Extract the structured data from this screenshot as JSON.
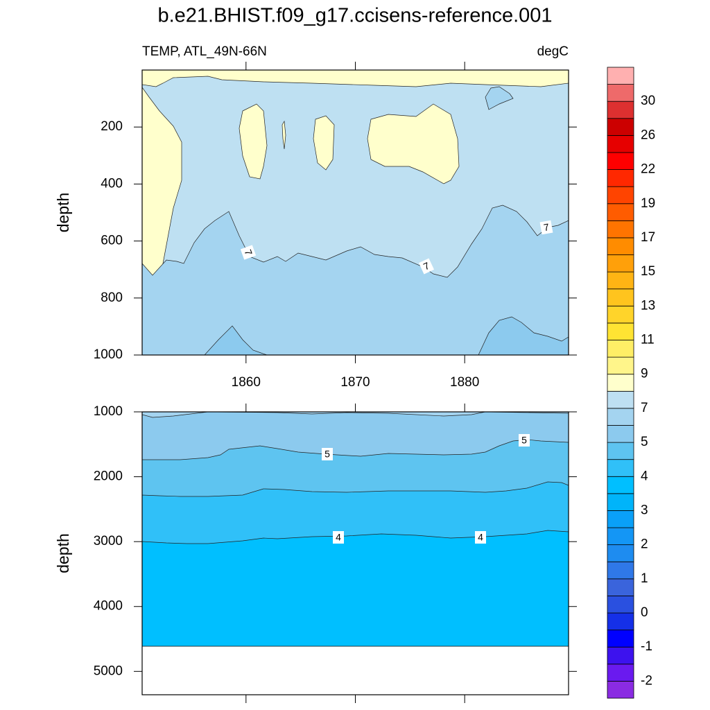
{
  "title": "b.e21.BHIST.f09_g17.ccisens-reference.001",
  "chart_data": [
    {
      "type": "contour",
      "left_string": "TEMP, ATL_49N-66N",
      "right_string": "degC",
      "y_label": "depth",
      "xlim": [
        1850.5,
        1889.5
      ],
      "xticks": [
        1860,
        1870,
        1880
      ],
      "x_tick_labels": true,
      "ylim": [
        0,
        1000
      ],
      "yticks": [
        200,
        400,
        600,
        800,
        1000
      ],
      "contour_labels": [
        7,
        7,
        7
      ]
    },
    {
      "type": "contour",
      "y_label": "depth",
      "xlim": [
        1850.5,
        1889.5
      ],
      "xticks": [
        1860,
        1870,
        1880
      ],
      "x_tick_labels": false,
      "ylim": [
        1000,
        5360
      ],
      "yticks": [
        1000,
        2000,
        3000,
        4000,
        5000
      ],
      "contour_labels": [
        5,
        5,
        4,
        4
      ]
    }
  ],
  "colorbar": {
    "labels": [
      -2,
      -1,
      0,
      1,
      2,
      3,
      4,
      5,
      7,
      9,
      11,
      13,
      15,
      17,
      19,
      22,
      26,
      30
    ],
    "colors": [
      "#8a2be2",
      "#6a1aef",
      "#3d12ee",
      "#0000ff",
      "#1530e8",
      "#2a50e0",
      "#3a64dc",
      "#2f78e8",
      "#1e8cf0",
      "#1496f5",
      "#0aa0f8",
      "#00b4fa",
      "#00bfff",
      "#30c0f8",
      "#5ec4f0",
      "#8ccaee",
      "#a4d4f0",
      "#bee0f2",
      "#ffffcc",
      "#fff58a",
      "#ffee66",
      "#ffe433",
      "#ffd42a",
      "#ffc41e",
      "#ffb414",
      "#ffa00a",
      "#ff8c00",
      "#ff7400",
      "#ff5c00",
      "#ff4400",
      "#ff2800",
      "#ff0000",
      "#e60000",
      "#cc0000",
      "#dd3030",
      "#ee6a6a",
      "#ffb0b0"
    ]
  }
}
